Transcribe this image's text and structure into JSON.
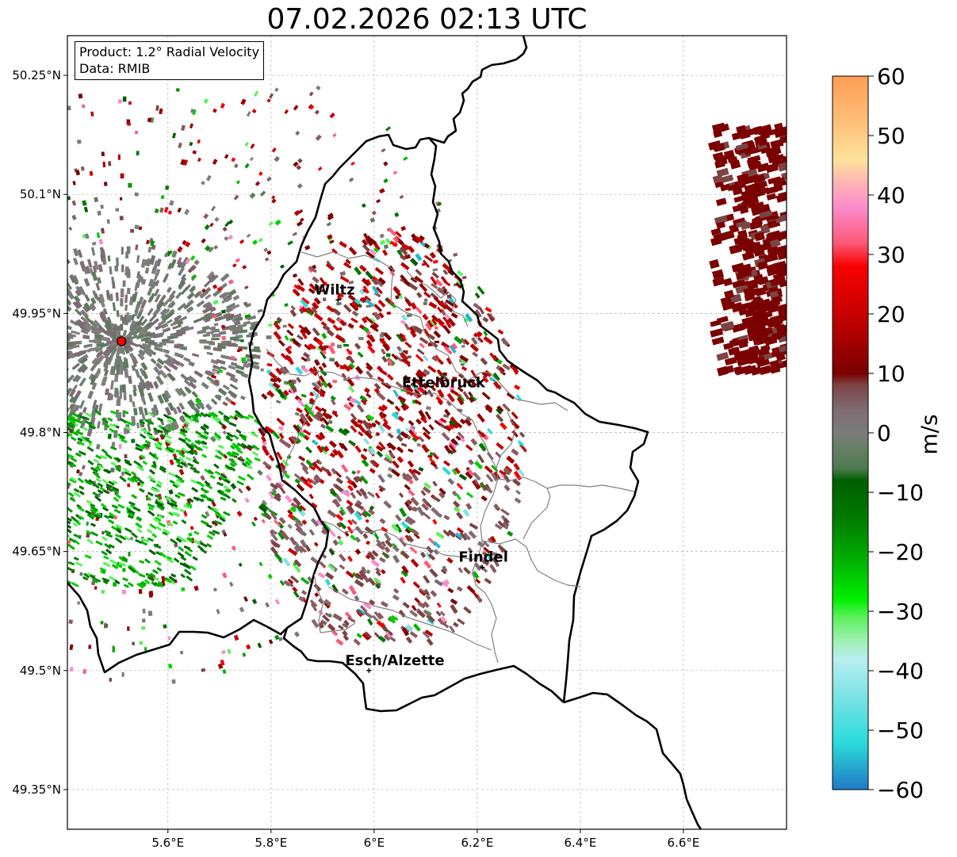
{
  "title": "07.02.2026 02:13 UTC",
  "infobox": {
    "product": "Product: 1.2° Radial Velocity",
    "source": "Data: RMIB"
  },
  "axes": {
    "lat_ticks": [
      "50.25°N",
      "50.1°N",
      "49.95°N",
      "49.8°N",
      "49.65°N",
      "49.5°N",
      "49.35°N"
    ],
    "lon_ticks": [
      "5.6°E",
      "5.8°E",
      "6°E",
      "6.2°E",
      "6.4°E",
      "6.6°E"
    ],
    "lat_values": [
      50.25,
      50.1,
      49.95,
      49.8,
      49.65,
      49.5,
      49.35
    ],
    "lon_values": [
      5.6,
      5.8,
      6.0,
      6.2,
      6.4,
      6.6
    ],
    "lon_range": [
      5.405,
      6.8
    ],
    "lat_range": [
      49.3,
      50.3
    ]
  },
  "colorbar": {
    "unit": "m/s",
    "ticks": [
      "60",
      "50",
      "40",
      "30",
      "20",
      "10",
      "0",
      "−10",
      "−20",
      "−30",
      "−40",
      "−50",
      "−60"
    ],
    "range": [
      -60,
      60
    ],
    "stops": [
      {
        "v": 60,
        "c": "#fd9d55"
      },
      {
        "v": 52,
        "c": "#fec07a"
      },
      {
        "v": 46,
        "c": "#fee29c"
      },
      {
        "v": 42,
        "c": "#feb4b4"
      },
      {
        "v": 38,
        "c": "#fb8ccc"
      },
      {
        "v": 32,
        "c": "#fc5a78"
      },
      {
        "v": 28,
        "c": "#f80000"
      },
      {
        "v": 20,
        "c": "#c80000"
      },
      {
        "v": 14,
        "c": "#9a0000"
      },
      {
        "v": 10,
        "c": "#7b0000"
      },
      {
        "v": 8,
        "c": "#7c4444"
      },
      {
        "v": 4,
        "c": "#7f6b73"
      },
      {
        "v": 0,
        "c": "#7b7b7b"
      },
      {
        "v": -2,
        "c": "#6a7f6a"
      },
      {
        "v": -6,
        "c": "#4d7a4d"
      },
      {
        "v": -8,
        "c": "#005e00"
      },
      {
        "v": -14,
        "c": "#007800"
      },
      {
        "v": -22,
        "c": "#00b400"
      },
      {
        "v": -28,
        "c": "#00f000"
      },
      {
        "v": -31,
        "c": "#5cf05c"
      },
      {
        "v": -35,
        "c": "#9ff0b4"
      },
      {
        "v": -38,
        "c": "#b8eef0"
      },
      {
        "v": -44,
        "c": "#7fe2e6"
      },
      {
        "v": -52,
        "c": "#2adcdc"
      },
      {
        "v": -55,
        "c": "#27b8d0"
      },
      {
        "v": -60,
        "c": "#1f7ac8"
      }
    ]
  },
  "cities": [
    {
      "name": "Wiltz",
      "lon": 5.93,
      "lat": 49.967
    },
    {
      "name": "Ettelbruck",
      "lon": 6.1,
      "lat": 49.85
    },
    {
      "name": "Findel",
      "lon": 6.21,
      "lat": 49.63
    },
    {
      "name": "Esch/Alzette",
      "lon": 5.99,
      "lat": 49.5
    }
  ],
  "radar_site": {
    "lon": 5.51,
    "lat": 49.915,
    "color": "#ff0000"
  },
  "colors": {
    "border": "#000000",
    "admin_border": "#808080",
    "grid": "#b0b0b0",
    "echo_far_east": "#7b0000"
  }
}
